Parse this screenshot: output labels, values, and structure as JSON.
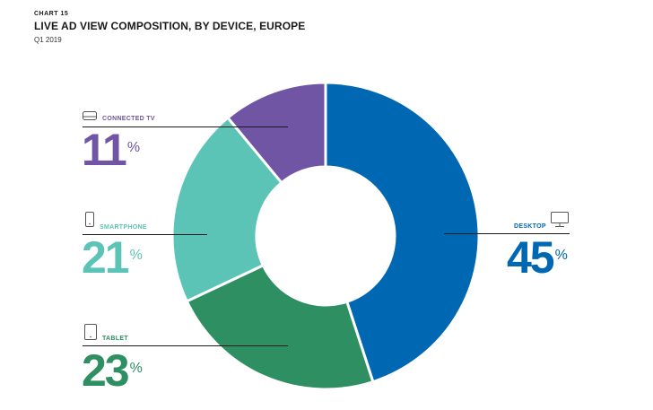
{
  "header": {
    "chart_number": "CHART 15",
    "title": "LIVE AD VIEW COMPOSITION, BY DEVICE, EUROPE",
    "subtitle": "Q1 2019"
  },
  "chart_data": {
    "type": "pie",
    "style": "donut",
    "categories": [
      "DESKTOP",
      "TABLET",
      "SMARTPHONE",
      "CONNECTED TV"
    ],
    "values": [
      45,
      23,
      21,
      11
    ],
    "unit": "%",
    "colors": [
      "#0067b3",
      "#2e8f63",
      "#5cc4b6",
      "#6f55a3"
    ],
    "icons": [
      "desktop-monitor-icon",
      "tablet-icon",
      "smartphone-icon",
      "connected-tv-icon"
    ],
    "value_labels": [
      "45",
      "23",
      "21",
      "11"
    ],
    "percent_sign": "%"
  }
}
